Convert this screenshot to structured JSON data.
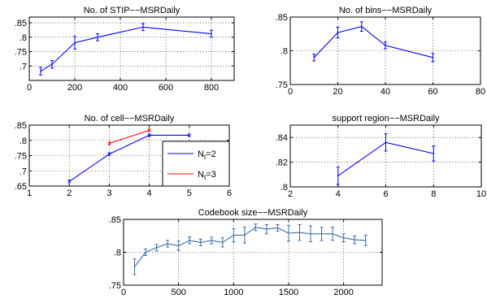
{
  "figure": {
    "background": "#ffffff"
  },
  "chart_data": [
    {
      "type": "line",
      "title": "No. of STIP−−MSRDaily",
      "xlabel": "",
      "ylabel": "",
      "xlim": [
        0,
        900
      ],
      "ylim": [
        0.65,
        0.87
      ],
      "xticks": [
        0,
        200,
        400,
        600,
        800
      ],
      "yticks": [
        0.7,
        0.75,
        0.8,
        0.85
      ],
      "grid": true,
      "series": [
        {
          "color": "#0000ff",
          "x": [
            50,
            100,
            200,
            300,
            500,
            800
          ],
          "y": [
            0.682,
            0.706,
            0.781,
            0.8,
            0.835,
            0.812
          ],
          "err": [
            0.013,
            0.013,
            0.022,
            0.012,
            0.012,
            0.012
          ]
        }
      ]
    },
    {
      "type": "line",
      "title": "No. of bins−−MSRDaily",
      "xlabel": "",
      "ylabel": "",
      "xlim": [
        0,
        80
      ],
      "ylim": [
        0.75,
        0.85
      ],
      "xticks": [
        0,
        20,
        40,
        60,
        80
      ],
      "yticks": [
        0.75,
        0.8,
        0.85
      ],
      "grid": true,
      "series": [
        {
          "color": "#0000ff",
          "x": [
            10,
            20,
            30,
            40,
            60
          ],
          "y": [
            0.79,
            0.827,
            0.836,
            0.808,
            0.79
          ],
          "err": [
            0.005,
            0.008,
            0.007,
            0.005,
            0.006
          ]
        }
      ]
    },
    {
      "type": "line",
      "title": "No. of cell−−MSRDaily",
      "xlabel": "",
      "ylabel": "",
      "xlim": [
        1,
        6
      ],
      "ylim": [
        0.65,
        0.85
      ],
      "xticks": [
        1,
        2,
        3,
        4,
        5,
        6
      ],
      "yticks": [
        0.65,
        0.7,
        0.75,
        0.8,
        0.85
      ],
      "grid": true,
      "legend": "bottom-right",
      "series": [
        {
          "name": "N_t=2",
          "color": "#0000ff",
          "x": [
            2,
            3,
            4,
            5
          ],
          "y": [
            0.665,
            0.755,
            0.817,
            0.817
          ],
          "err": [
            0.004,
            0.004,
            0.004,
            0.004
          ]
        },
        {
          "name": "N_t=3",
          "color": "#ff0000",
          "x": [
            3,
            4
          ],
          "y": [
            0.79,
            0.833
          ],
          "err": [
            0.004,
            0.004
          ]
        }
      ]
    },
    {
      "type": "line",
      "title": "support region−−MSRDaily",
      "xlabel": "",
      "ylabel": "",
      "xlim": [
        2,
        10
      ],
      "ylim": [
        0.8,
        0.85
      ],
      "xticks": [
        2,
        4,
        6,
        8,
        10
      ],
      "yticks": [
        0.8,
        0.82,
        0.84
      ],
      "grid": true,
      "series": [
        {
          "color": "#0000ff",
          "x": [
            4,
            6,
            8
          ],
          "y": [
            0.809,
            0.836,
            0.827
          ],
          "err": [
            0.007,
            0.007,
            0.006
          ]
        }
      ]
    },
    {
      "type": "line",
      "title": "Codebook size−−MSRDaily",
      "xlabel": "",
      "ylabel": "",
      "xlim": [
        0,
        2350
      ],
      "ylim": [
        0.75,
        0.85
      ],
      "xticks": [
        0,
        500,
        1000,
        1500,
        2000
      ],
      "yticks": [
        0.75,
        0.8,
        0.85
      ],
      "grid": true,
      "series": [
        {
          "color": "#3a6ea5",
          "x": [
            100,
            200,
            300,
            400,
            500,
            600,
            700,
            800,
            900,
            1000,
            1100,
            1200,
            1300,
            1400,
            1500,
            1600,
            1700,
            1800,
            1900,
            2000,
            2100,
            2200
          ],
          "y": [
            0.778,
            0.8,
            0.807,
            0.813,
            0.81,
            0.818,
            0.815,
            0.818,
            0.815,
            0.826,
            0.826,
            0.838,
            0.835,
            0.837,
            0.829,
            0.83,
            0.828,
            0.828,
            0.828,
            0.822,
            0.819,
            0.818
          ],
          "err": [
            0.012,
            0.005,
            0.005,
            0.005,
            0.007,
            0.005,
            0.005,
            0.005,
            0.007,
            0.01,
            0.012,
            0.005,
            0.007,
            0.005,
            0.012,
            0.012,
            0.012,
            0.01,
            0.01,
            0.006,
            0.006,
            0.008
          ]
        }
      ]
    }
  ]
}
